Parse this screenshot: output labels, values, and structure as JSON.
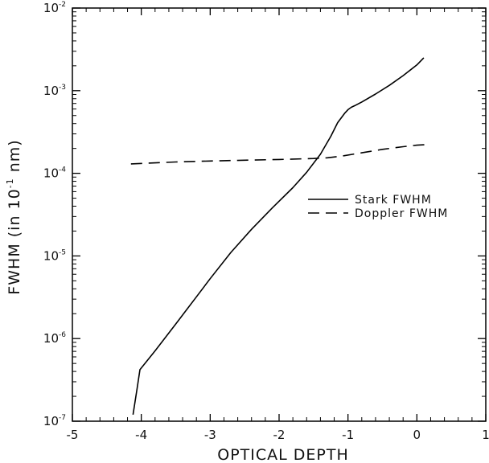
{
  "chart_data": {
    "type": "line",
    "xlabel": "OPTICAL DEPTH",
    "ylabel_prefix": "FWHM  (in  10",
    "ylabel_exponent": "-1",
    "ylabel_suffix": " nm)",
    "xlim": [
      -5,
      1
    ],
    "ylim": [
      1e-07,
      0.01
    ],
    "yscale": "log",
    "grid": false,
    "legend_position": "center-right",
    "xticks": [
      {
        "value": -5,
        "label": "-5"
      },
      {
        "value": -4,
        "label": "-4"
      },
      {
        "value": -3,
        "label": "-3"
      },
      {
        "value": -2,
        "label": "-2"
      },
      {
        "value": -1,
        "label": "-1"
      },
      {
        "value": 0,
        "label": "0"
      },
      {
        "value": 1,
        "label": "1"
      }
    ],
    "yticks": [
      {
        "value": 1e-07,
        "base": "10",
        "exp": "-7"
      },
      {
        "value": 1e-06,
        "base": "10",
        "exp": "-6"
      },
      {
        "value": 1e-05,
        "base": "10",
        "exp": "-5"
      },
      {
        "value": 0.0001,
        "base": "10",
        "exp": "-4"
      },
      {
        "value": 0.001,
        "base": "10",
        "exp": "-3"
      },
      {
        "value": 0.01,
        "base": "10",
        "exp": "-2"
      }
    ],
    "series": [
      {
        "name": "Stark FWHM",
        "style": "solid",
        "color": "#000000",
        "x": [
          -4.12,
          -4.06,
          -4.02,
          -3.8,
          -3.5,
          -3.2,
          -3.0,
          -2.7,
          -2.4,
          -2.1,
          -1.8,
          -1.6,
          -1.4,
          -1.25,
          -1.15,
          -1.05,
          -1.0,
          -0.95,
          -0.9,
          -0.8,
          -0.6,
          -0.4,
          -0.2,
          0.0,
          0.1
        ],
        "y": [
          1.2e-07,
          2.5e-07,
          4.2e-07,
          7.1e-07,
          1.5e-06,
          3.2e-06,
          5.3e-06,
          1.1e-05,
          2.1e-05,
          3.8e-05,
          6.7e-05,
          0.000103,
          0.00017,
          0.00028,
          0.00041,
          0.00053,
          0.00059,
          0.00063,
          0.00066,
          0.00073,
          0.00091,
          0.00116,
          0.00152,
          0.00205,
          0.0025
        ]
      },
      {
        "name": "Doppler FWHM",
        "style": "dashed",
        "color": "#000000",
        "x": [
          -4.15,
          -3.5,
          -3.0,
          -2.5,
          -2.0,
          -1.5,
          -1.3,
          -1.1,
          -0.8,
          -0.5,
          -0.2,
          0.0,
          0.12
        ],
        "y": [
          0.00013,
          0.000137,
          0.000141,
          0.000144,
          0.000147,
          0.000151,
          0.000154,
          0.000161,
          0.000177,
          0.000195,
          0.00021,
          0.000219,
          0.000222
        ]
      }
    ]
  }
}
